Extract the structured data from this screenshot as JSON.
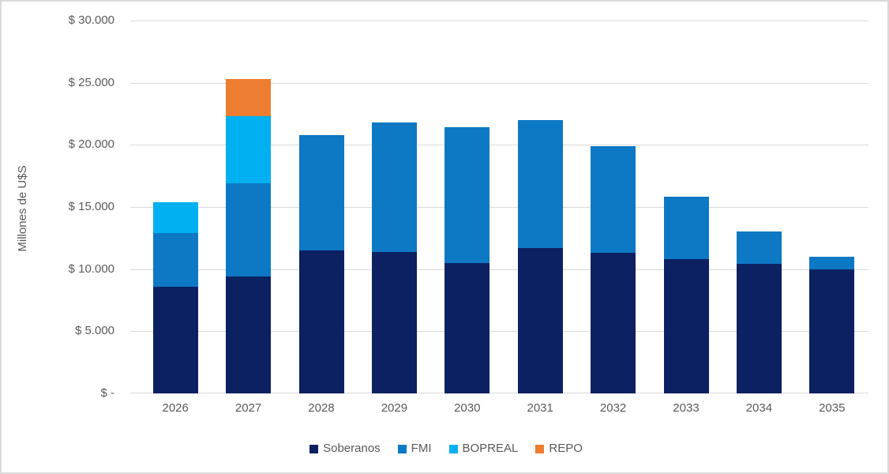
{
  "chart_data": {
    "type": "bar",
    "stacked": true,
    "title": "",
    "xlabel": "",
    "ylabel": "Millones de U$S",
    "ylim": [
      0,
      30000
    ],
    "y_tick_step": 5000,
    "grid": true,
    "legend_position": "bottom",
    "categories": [
      "2026",
      "2027",
      "2028",
      "2029",
      "2030",
      "2031",
      "2032",
      "2033",
      "2034",
      "2035"
    ],
    "series": [
      {
        "name": "Soberanos",
        "color": "#0b2161",
        "values": [
          8600,
          9400,
          11500,
          11400,
          10500,
          11700,
          11300,
          10800,
          10400,
          10000
        ]
      },
      {
        "name": "FMI",
        "color": "#0d78c4",
        "values": [
          4300,
          7500,
          9300,
          10400,
          10900,
          10300,
          8600,
          5000,
          2600,
          1000
        ]
      },
      {
        "name": "BOPREAL",
        "color": "#00b0f0",
        "values": [
          2500,
          5400,
          0,
          0,
          0,
          0,
          0,
          0,
          0,
          0
        ]
      },
      {
        "name": "REPO",
        "color": "#ed7d31",
        "values": [
          0,
          3000,
          0,
          0,
          0,
          0,
          0,
          0,
          0,
          0
        ]
      }
    ],
    "totals": [
      15400,
      25300,
      20800,
      21800,
      21400,
      22000,
      19900,
      15800,
      13000,
      11000
    ],
    "y_ticks": [
      {
        "value": 30000,
        "label": "$ 30.000"
      },
      {
        "value": 25000,
        "label": "$ 25.000"
      },
      {
        "value": 20000,
        "label": "$ 20.000"
      },
      {
        "value": 15000,
        "label": "$ 15.000"
      },
      {
        "value": 10000,
        "label": "$ 10.000"
      },
      {
        "value": 5000,
        "label": "$ 5.000"
      },
      {
        "value": 0,
        "label": "$ -"
      }
    ],
    "colors": {
      "grid": "#d9d9d9",
      "axis_text": "#595959",
      "background": "#ffffff",
      "border": "#d9d9d9"
    }
  }
}
